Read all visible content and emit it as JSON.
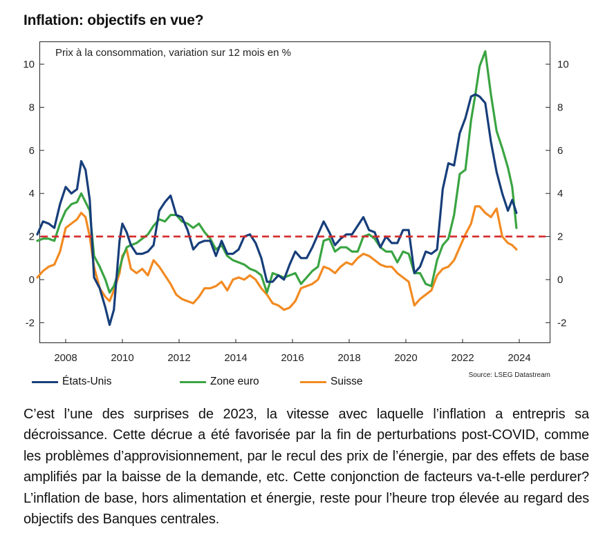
{
  "title": "Inflation: objectifs en vue?",
  "chart_data": {
    "type": "line",
    "subtitle": "Prix à la consommation, variation sur 12 mois en %",
    "xlim": [
      2007.0,
      2025.0
    ],
    "ylim": [
      -3,
      11
    ],
    "x_ticks": [
      2008,
      2010,
      2012,
      2014,
      2016,
      2018,
      2020,
      2022,
      2024
    ],
    "y_ticks": [
      -2,
      0,
      2,
      4,
      6,
      8,
      10
    ],
    "target_line": {
      "value": 2,
      "style": "dashed",
      "color": "#d42a2a"
    },
    "grid": false,
    "legend_position": "bottom-left",
    "source": "Source: LSEG Datastream",
    "series": [
      {
        "name": "États-Unis",
        "color": "#173e7a",
        "x": [
          2007.0,
          2007.2,
          2007.4,
          2007.6,
          2007.8,
          2008.0,
          2008.2,
          2008.4,
          2008.55,
          2008.7,
          2008.85,
          2009.0,
          2009.2,
          2009.4,
          2009.55,
          2009.7,
          2009.9,
          2010.0,
          2010.15,
          2010.3,
          2010.5,
          2010.7,
          2010.9,
          2011.1,
          2011.3,
          2011.5,
          2011.7,
          2011.9,
          2012.1,
          2012.3,
          2012.5,
          2012.7,
          2012.9,
          2013.1,
          2013.3,
          2013.5,
          2013.7,
          2013.9,
          2014.1,
          2014.3,
          2014.5,
          2014.7,
          2014.9,
          2015.1,
          2015.3,
          2015.5,
          2015.7,
          2015.9,
          2016.1,
          2016.3,
          2016.5,
          2016.7,
          2016.9,
          2017.1,
          2017.3,
          2017.5,
          2017.7,
          2017.9,
          2018.1,
          2018.3,
          2018.5,
          2018.7,
          2018.9,
          2019.1,
          2019.3,
          2019.5,
          2019.7,
          2019.9,
          2020.1,
          2020.3,
          2020.5,
          2020.7,
          2020.9,
          2021.1,
          2021.3,
          2021.5,
          2021.7,
          2021.9,
          2022.1,
          2022.3,
          2022.45,
          2022.6,
          2022.8,
          2023.0,
          2023.2,
          2023.4,
          2023.6,
          2023.75,
          2023.9
        ],
        "y": [
          2.1,
          2.7,
          2.6,
          2.4,
          3.5,
          4.3,
          4.0,
          4.2,
          5.5,
          5.1,
          3.7,
          0.1,
          -0.4,
          -1.3,
          -2.1,
          -1.4,
          1.8,
          2.6,
          2.2,
          1.6,
          1.2,
          1.2,
          1.3,
          1.6,
          3.2,
          3.6,
          3.9,
          3.0,
          2.9,
          2.3,
          1.4,
          1.7,
          1.8,
          1.8,
          1.1,
          1.8,
          1.2,
          1.2,
          1.4,
          2.0,
          2.1,
          1.7,
          1.0,
          -0.1,
          -0.1,
          0.2,
          0.0,
          0.7,
          1.3,
          1.0,
          1.0,
          1.5,
          2.1,
          2.7,
          2.2,
          1.6,
          1.9,
          2.1,
          2.1,
          2.5,
          2.9,
          2.3,
          2.2,
          1.5,
          2.0,
          1.7,
          1.7,
          2.3,
          2.3,
          0.3,
          0.6,
          1.3,
          1.2,
          1.4,
          4.2,
          5.4,
          5.3,
          6.8,
          7.5,
          8.5,
          8.6,
          8.5,
          8.2,
          6.4,
          5.0,
          4.0,
          3.2,
          3.7,
          3.1
        ]
      },
      {
        "name": "Zone euro",
        "color": "#3aa442",
        "x": [
          2007.0,
          2007.2,
          2007.4,
          2007.6,
          2007.8,
          2008.0,
          2008.2,
          2008.4,
          2008.55,
          2008.7,
          2008.85,
          2009.0,
          2009.2,
          2009.4,
          2009.55,
          2009.7,
          2009.9,
          2010.0,
          2010.15,
          2010.3,
          2010.5,
          2010.7,
          2010.9,
          2011.1,
          2011.3,
          2011.5,
          2011.7,
          2011.9,
          2012.1,
          2012.3,
          2012.5,
          2012.7,
          2012.9,
          2013.1,
          2013.3,
          2013.5,
          2013.7,
          2013.9,
          2014.1,
          2014.3,
          2014.5,
          2014.7,
          2014.9,
          2015.1,
          2015.3,
          2015.5,
          2015.7,
          2015.9,
          2016.1,
          2016.3,
          2016.5,
          2016.7,
          2016.9,
          2017.1,
          2017.3,
          2017.5,
          2017.7,
          2017.9,
          2018.1,
          2018.3,
          2018.5,
          2018.7,
          2018.9,
          2019.1,
          2019.3,
          2019.5,
          2019.7,
          2019.9,
          2020.1,
          2020.3,
          2020.5,
          2020.7,
          2020.9,
          2021.1,
          2021.3,
          2021.5,
          2021.7,
          2021.9,
          2022.1,
          2022.3,
          2022.45,
          2022.6,
          2022.8,
          2023.0,
          2023.2,
          2023.4,
          2023.6,
          2023.75,
          2023.9
        ],
        "y": [
          1.8,
          1.9,
          1.9,
          1.8,
          2.6,
          3.2,
          3.5,
          3.6,
          4.0,
          3.6,
          3.2,
          1.1,
          0.6,
          0.0,
          -0.6,
          -0.3,
          0.5,
          1.0,
          1.5,
          1.6,
          1.7,
          1.9,
          2.1,
          2.5,
          2.8,
          2.7,
          3.0,
          3.0,
          2.7,
          2.6,
          2.4,
          2.6,
          2.2,
          1.9,
          1.4,
          1.6,
          1.1,
          0.9,
          0.8,
          0.7,
          0.5,
          0.4,
          0.2,
          -0.6,
          0.3,
          0.2,
          0.1,
          0.2,
          0.3,
          -0.2,
          0.1,
          0.4,
          0.6,
          1.8,
          1.9,
          1.3,
          1.5,
          1.5,
          1.3,
          1.3,
          2.0,
          2.1,
          1.9,
          1.5,
          1.3,
          1.3,
          0.8,
          1.3,
          1.2,
          0.3,
          0.3,
          -0.2,
          -0.3,
          0.9,
          1.6,
          1.9,
          3.0,
          4.9,
          5.1,
          7.4,
          8.6,
          9.9,
          10.6,
          8.6,
          6.9,
          6.1,
          5.2,
          4.3,
          2.4
        ]
      },
      {
        "name": "Suisse",
        "color": "#f28a21",
        "x": [
          2007.0,
          2007.2,
          2007.4,
          2007.6,
          2007.8,
          2008.0,
          2008.2,
          2008.4,
          2008.55,
          2008.7,
          2008.85,
          2009.0,
          2009.2,
          2009.4,
          2009.55,
          2009.7,
          2009.9,
          2010.0,
          2010.15,
          2010.3,
          2010.5,
          2010.7,
          2010.9,
          2011.1,
          2011.3,
          2011.5,
          2011.7,
          2011.9,
          2012.1,
          2012.3,
          2012.5,
          2012.7,
          2012.9,
          2013.1,
          2013.3,
          2013.5,
          2013.7,
          2013.9,
          2014.1,
          2014.3,
          2014.5,
          2014.7,
          2014.9,
          2015.1,
          2015.3,
          2015.5,
          2015.7,
          2015.9,
          2016.1,
          2016.3,
          2016.5,
          2016.7,
          2016.9,
          2017.1,
          2017.3,
          2017.5,
          2017.7,
          2017.9,
          2018.1,
          2018.3,
          2018.5,
          2018.7,
          2018.9,
          2019.1,
          2019.3,
          2019.5,
          2019.7,
          2019.9,
          2020.1,
          2020.3,
          2020.5,
          2020.7,
          2020.9,
          2021.1,
          2021.3,
          2021.5,
          2021.7,
          2021.9,
          2022.1,
          2022.3,
          2022.45,
          2022.6,
          2022.8,
          2023.0,
          2023.2,
          2023.4,
          2023.6,
          2023.75,
          2023.9
        ],
        "y": [
          0.1,
          0.4,
          0.6,
          0.7,
          1.3,
          2.4,
          2.6,
          2.8,
          3.1,
          2.9,
          2.0,
          0.6,
          -0.4,
          -0.8,
          -1.0,
          -0.5,
          0.3,
          1.1,
          1.4,
          0.5,
          0.3,
          0.5,
          0.2,
          0.9,
          0.6,
          0.2,
          -0.2,
          -0.7,
          -0.9,
          -1.0,
          -1.1,
          -0.8,
          -0.4,
          -0.4,
          -0.3,
          -0.1,
          -0.5,
          0.0,
          0.1,
          0.0,
          0.2,
          0.0,
          -0.4,
          -0.7,
          -1.1,
          -1.2,
          -1.4,
          -1.3,
          -1.0,
          -0.4,
          -0.3,
          -0.2,
          0.0,
          0.6,
          0.5,
          0.3,
          0.6,
          0.8,
          0.7,
          1.0,
          1.2,
          1.1,
          0.9,
          0.7,
          0.6,
          0.6,
          0.3,
          0.1,
          -0.1,
          -1.2,
          -0.9,
          -0.7,
          -0.5,
          0.2,
          0.5,
          0.6,
          0.9,
          1.5,
          2.1,
          2.6,
          3.4,
          3.4,
          3.1,
          2.9,
          3.3,
          2.0,
          1.7,
          1.6,
          1.4
        ]
      }
    ]
  },
  "legend": {
    "items": [
      {
        "label": "États-Unis",
        "color": "#173e7a"
      },
      {
        "label": "Zone euro",
        "color": "#3aa442"
      },
      {
        "label": "Suisse",
        "color": "#f28a21"
      }
    ]
  },
  "body_text": "C’est l’une des surprises de 2023, la vitesse avec laquelle l’inflation a entrepris sa décroissance. Cette décrue a été favorisée par la fin de perturbations post-COVID, comme les problèmes d’approvisionnement, par le recul des prix de l’énergie, par des effets de base amplifiés par la baisse de la demande, etc. Cette conjonction de facteurs va-t-elle perdurer? L’inflation de base, hors alimentation et énergie, reste pour l’heure trop élevée au regard des objectifs des Banques centrales."
}
